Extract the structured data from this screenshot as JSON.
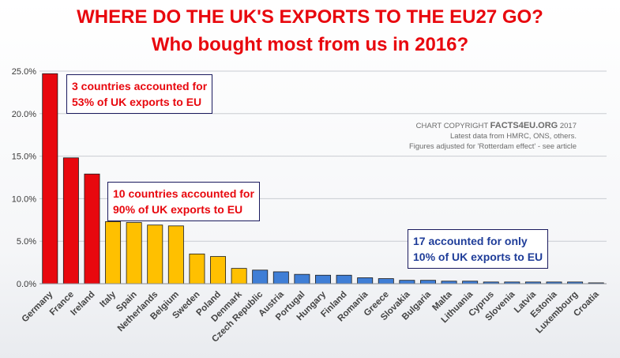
{
  "title_line1": "WHERE DO THE UK'S EXPORTS TO THE EU27 GO?",
  "title_line2": "Who bought most from us in 2016?",
  "annotations": {
    "top3_line1": "3 countries accounted for",
    "top3_line2": "53% of UK exports to EU",
    "top10_line1": "10 countries accounted for",
    "top10_line2": "90% of UK exports to EU",
    "rest_line1": "17 accounted for only",
    "rest_line2": "10% of UK exports to EU"
  },
  "copyright": {
    "prefix": "CHART COPYRIGHT",
    "brand": "FACTS4EU.ORG",
    "year": "2017",
    "line2": "Latest data from HMRC, ONS, others.",
    "line3": "Figures adjusted for 'Rotterdam effect' - see article"
  },
  "colors": {
    "top3": "#e8080e",
    "top10": "#ffc000",
    "rest": "#3f7ed6",
    "bar_outline": "#1a1a1a",
    "grid": "#c9ccd2"
  },
  "chart_data": {
    "type": "bar",
    "title": "WHERE DO THE UK'S EXPORTS TO THE EU27 GO? Who bought most from us in 2016?",
    "xlabel": "",
    "ylabel": "",
    "ylim": [
      0,
      25
    ],
    "yticks": [
      "0.0%",
      "5.0%",
      "10.0%",
      "15.0%",
      "20.0%",
      "25.0%"
    ],
    "grid": true,
    "categories": [
      "Germany",
      "France",
      "Ireland",
      "Italy",
      "Spain",
      "Netherlands",
      "Belgium",
      "Sweden",
      "Poland",
      "Denmark",
      "Czech Republic",
      "Austria",
      "Portugal",
      "Hungary",
      "Finland",
      "Romania",
      "Greece",
      "Slovakia",
      "Bulgaria",
      "Malta",
      "Lithuania",
      "Cyprus",
      "Slovenia",
      "Latvia",
      "Estonia",
      "Luxembourg",
      "Croatia"
    ],
    "values": [
      24.7,
      14.8,
      12.9,
      7.3,
      7.2,
      6.9,
      6.8,
      3.5,
      3.2,
      1.8,
      1.6,
      1.4,
      1.1,
      1.0,
      1.0,
      0.7,
      0.6,
      0.4,
      0.4,
      0.3,
      0.3,
      0.2,
      0.2,
      0.2,
      0.2,
      0.2,
      0.1
    ],
    "groups": [
      "top3",
      "top3",
      "top3",
      "top10",
      "top10",
      "top10",
      "top10",
      "top10",
      "top10",
      "top10",
      "rest",
      "rest",
      "rest",
      "rest",
      "rest",
      "rest",
      "rest",
      "rest",
      "rest",
      "rest",
      "rest",
      "rest",
      "rest",
      "rest",
      "rest",
      "rest",
      "rest"
    ]
  }
}
